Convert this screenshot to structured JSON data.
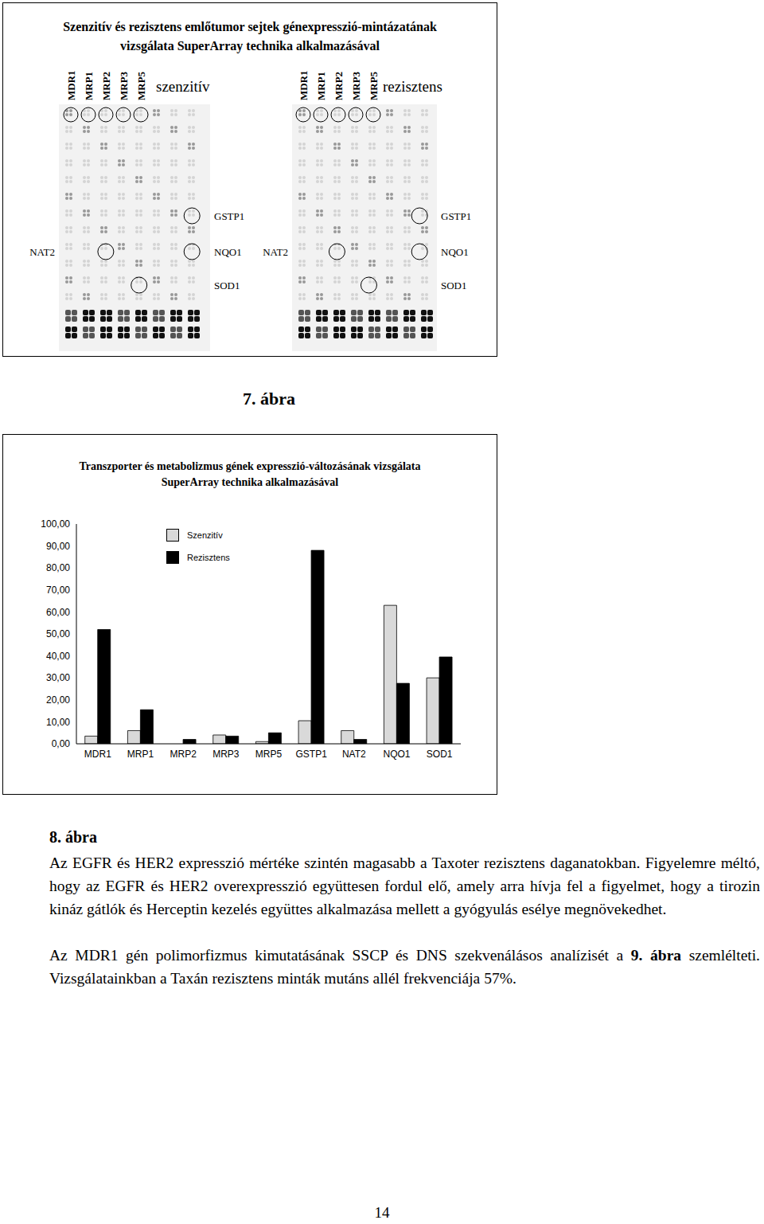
{
  "figure7": {
    "title": [
      "Szenzitív és rezisztens emlőtumor sejtek génexpresszió-mintázatának",
      "vizsgálata SuperArray technika alkalmazásával"
    ],
    "panels": [
      {
        "label": "szenzitív",
        "genes": [
          "MDR1",
          "MRP1",
          "MRP2",
          "MRP3",
          "MRP5"
        ],
        "markers": [
          "GSTP1",
          "NAT2",
          "NQO1",
          "SOD1"
        ]
      },
      {
        "label": "rezisztens",
        "genes": [
          "MDR1",
          "MRP1",
          "MRP2",
          "MRP3",
          "MRP5"
        ],
        "markers": [
          "GSTP1",
          "NAT2",
          "NQO1",
          "SOD1"
        ]
      }
    ],
    "caption": "7. ábra"
  },
  "chart_data": {
    "type": "bar",
    "title": [
      "Transzporter és metabolizmus gének expresszió-változásának vizsgálata",
      "SuperArray technika alkalmazásával"
    ],
    "categories": [
      "MDR1",
      "MRP1",
      "MRP2",
      "MRP3",
      "MRP5",
      "GSTP1",
      "NAT2",
      "NQO1",
      "SOD1"
    ],
    "series": [
      {
        "name": "Szenzitív",
        "color": "#d9d9d9",
        "values": [
          3.5,
          6,
          0,
          4,
          1,
          10.5,
          6,
          63,
          30
        ]
      },
      {
        "name": "Rezisztens",
        "color": "#000000",
        "values": [
          52,
          15.5,
          2,
          3.5,
          5,
          88,
          2,
          27.5,
          39.5
        ]
      }
    ],
    "ylim": [
      0,
      100
    ],
    "yticks": [
      {
        "value": 0,
        "label": "0,00"
      },
      {
        "value": 10,
        "label": "10,00"
      },
      {
        "value": 20,
        "label": "20,00"
      },
      {
        "value": 30,
        "label": "30,00"
      },
      {
        "value": 40,
        "label": "40,00"
      },
      {
        "value": 50,
        "label": "50,00"
      },
      {
        "value": 60,
        "label": "60,00"
      },
      {
        "value": 70,
        "label": "70,00"
      },
      {
        "value": 80,
        "label": "80,00"
      },
      {
        "value": 90,
        "label": "90,00"
      },
      {
        "value": 100,
        "label": "100,00"
      }
    ],
    "legend": "top-left",
    "grid": false
  },
  "caption8": "8. ábra",
  "paragraphs": [
    [
      {
        "text": "Az EGFR és HER2 expresszió mértéke szintén magasabb a Taxoter rezisztens daganatokban. Figyelemre méltó, hogy az EGFR és HER2 overexpresszió együttesen fordul elő, amely arra hívja fel a figyelmet, hogy a tirozin kináz gátlók és Herceptin kezelés együttes alkalmazása mellett a gyógyulás esélye megnövekedhet.",
        "bold": false
      }
    ],
    [
      {
        "text": "Az MDR1 gén polimorfizmus kimutatásának SSCP és DNS szekvenálásos analízisét a ",
        "bold": false
      },
      {
        "text": "9. ábra",
        "bold": true
      },
      {
        "text": " szemlélteti. Vizsgálatainkban a Taxán rezisztens minták mutáns allél frekvenciája 57%.",
        "bold": false
      }
    ]
  ],
  "page_number": "14"
}
